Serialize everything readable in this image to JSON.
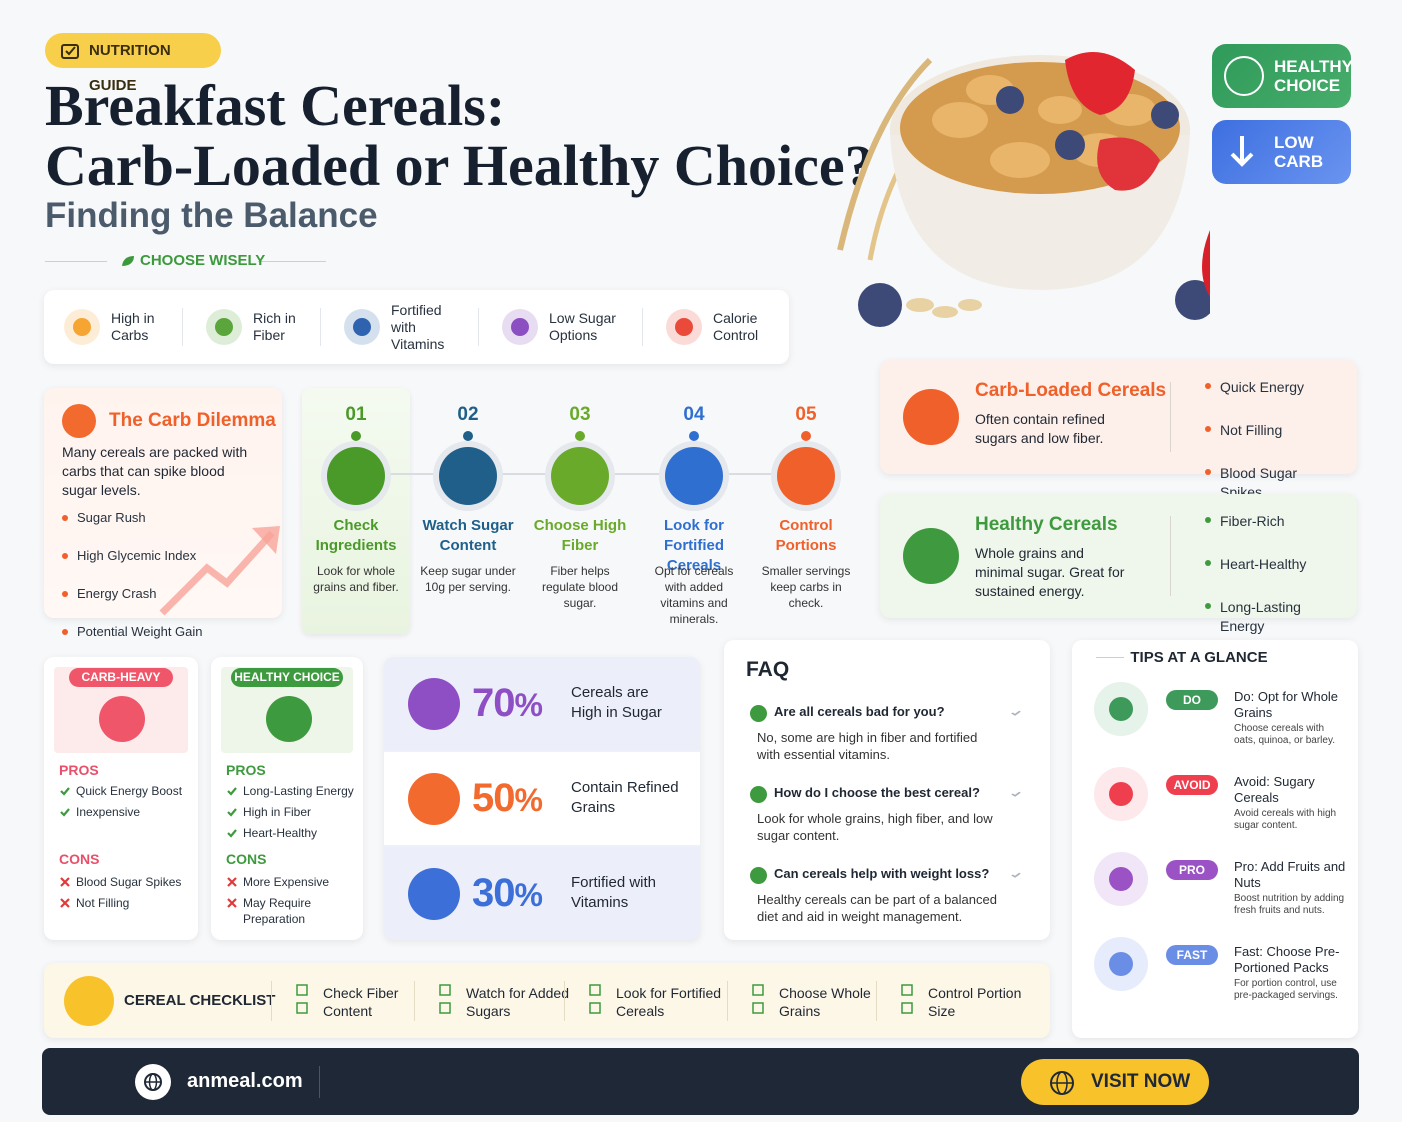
{
  "badge": "NUTRITION GUIDE",
  "title_line1": "Breakfast Cereals:",
  "title_line2": "Carb-Loaded or Healthy Choice?",
  "subtitle": "Finding the Balance",
  "tagline": "CHOOSE WISELY",
  "tags": [
    "HEALTHY CHOICE",
    "LOW CARB"
  ],
  "features": [
    "High in Carbs",
    "Rich in Fiber",
    "Fortified with Vitamins",
    "Low Sugar Options",
    "Calorie Control"
  ],
  "dilemma": {
    "title": "The Carb Dilemma",
    "text": "Many cereals are packed with carbs that can spike blood sugar levels.",
    "points": [
      "Sugar Rush",
      "High Glycemic Index",
      "Energy Crash",
      "Potential Weight Gain"
    ]
  },
  "steps": [
    {
      "number": "01",
      "title": "Check Ingredients",
      "text": "Look for whole grains and fiber."
    },
    {
      "number": "02",
      "title": "Watch Sugar Content",
      "text": "Keep sugar under 10g per serving."
    },
    {
      "number": "03",
      "title": "Choose High Fiber",
      "text": "Fiber helps regulate blood sugar."
    },
    {
      "number": "04",
      "title": "Look for Fortified Cereals",
      "text": "Opt for cereals with added vitamins and minerals."
    },
    {
      "number": "05",
      "title": "Control Portions",
      "text": "Smaller servings keep carbs in check."
    }
  ],
  "carb_loaded": {
    "title": "Carb-Loaded Cereals",
    "text": "Often contain refined sugars and low fiber.",
    "points": [
      "Quick Energy",
      "Not Filling",
      "Blood Sugar Spikes"
    ]
  },
  "healthy": {
    "title": "Healthy Cereals",
    "text": "Whole grains and minimal sugar. Great for sustained energy.",
    "points": [
      "Fiber-Rich",
      "Heart-Healthy",
      "Long-Lasting Energy"
    ]
  },
  "comparison": [
    {
      "badge": "CARB-HEAVY",
      "pros_label": "PROS",
      "pros": [
        "Quick Energy Boost",
        "Inexpensive"
      ],
      "cons_label": "CONS",
      "cons": [
        "Blood Sugar Spikes",
        "Not Filling"
      ]
    },
    {
      "badge": "HEALTHY CHOICE",
      "pros_label": "PROS",
      "pros": [
        "Long-Lasting Energy",
        "High in Fiber",
        "Heart-Healthy"
      ],
      "cons_label": "CONS",
      "cons": [
        "More Expensive",
        "May Require Preparation"
      ]
    }
  ],
  "stats": [
    {
      "value": "70",
      "symbol": "%",
      "label": "Cereals are High in Sugar"
    },
    {
      "value": "50",
      "symbol": "%",
      "label": "Contain Refined Grains"
    },
    {
      "value": "30",
      "symbol": "%",
      "label": "Fortified with Vitamins"
    }
  ],
  "faq": {
    "title": "FAQ",
    "items": [
      {
        "q": "Are all cereals bad for you?",
        "a": "No, some are high in fiber and fortified with essential vitamins."
      },
      {
        "q": "How do I choose the best cereal?",
        "a": "Look for whole grains, high fiber, and low sugar content."
      },
      {
        "q": "Can cereals help with weight loss?",
        "a": "Healthy cereals can be part of a balanced diet and aid in weight management."
      }
    ]
  },
  "tips": {
    "title": "TIPS AT A GLANCE",
    "items": [
      {
        "tag": "DO",
        "title": "Do: Opt for Whole Grains",
        "text": "Choose cereals with oats, quinoa, or barley."
      },
      {
        "tag": "AVOID",
        "title": "Avoid: Sugary Cereals",
        "text": "Avoid cereals with high sugar content."
      },
      {
        "tag": "PRO",
        "title": "Pro: Add Fruits and Nuts",
        "text": "Boost nutrition by adding fresh fruits and nuts."
      },
      {
        "tag": "FAST",
        "title": "Fast: Choose Pre-Portioned Packs",
        "text": "For portion control, use pre-packaged servings."
      }
    ]
  },
  "checklist": {
    "title": "CEREAL CHECKLIST",
    "items": [
      "Check Fiber Content",
      "Watch for Added Sugars",
      "Look for Fortified Cereals",
      "Choose Whole Grains",
      "Control Portion Size"
    ]
  },
  "footer": {
    "site": "anmeal.com",
    "button": "VISIT NOW"
  }
}
